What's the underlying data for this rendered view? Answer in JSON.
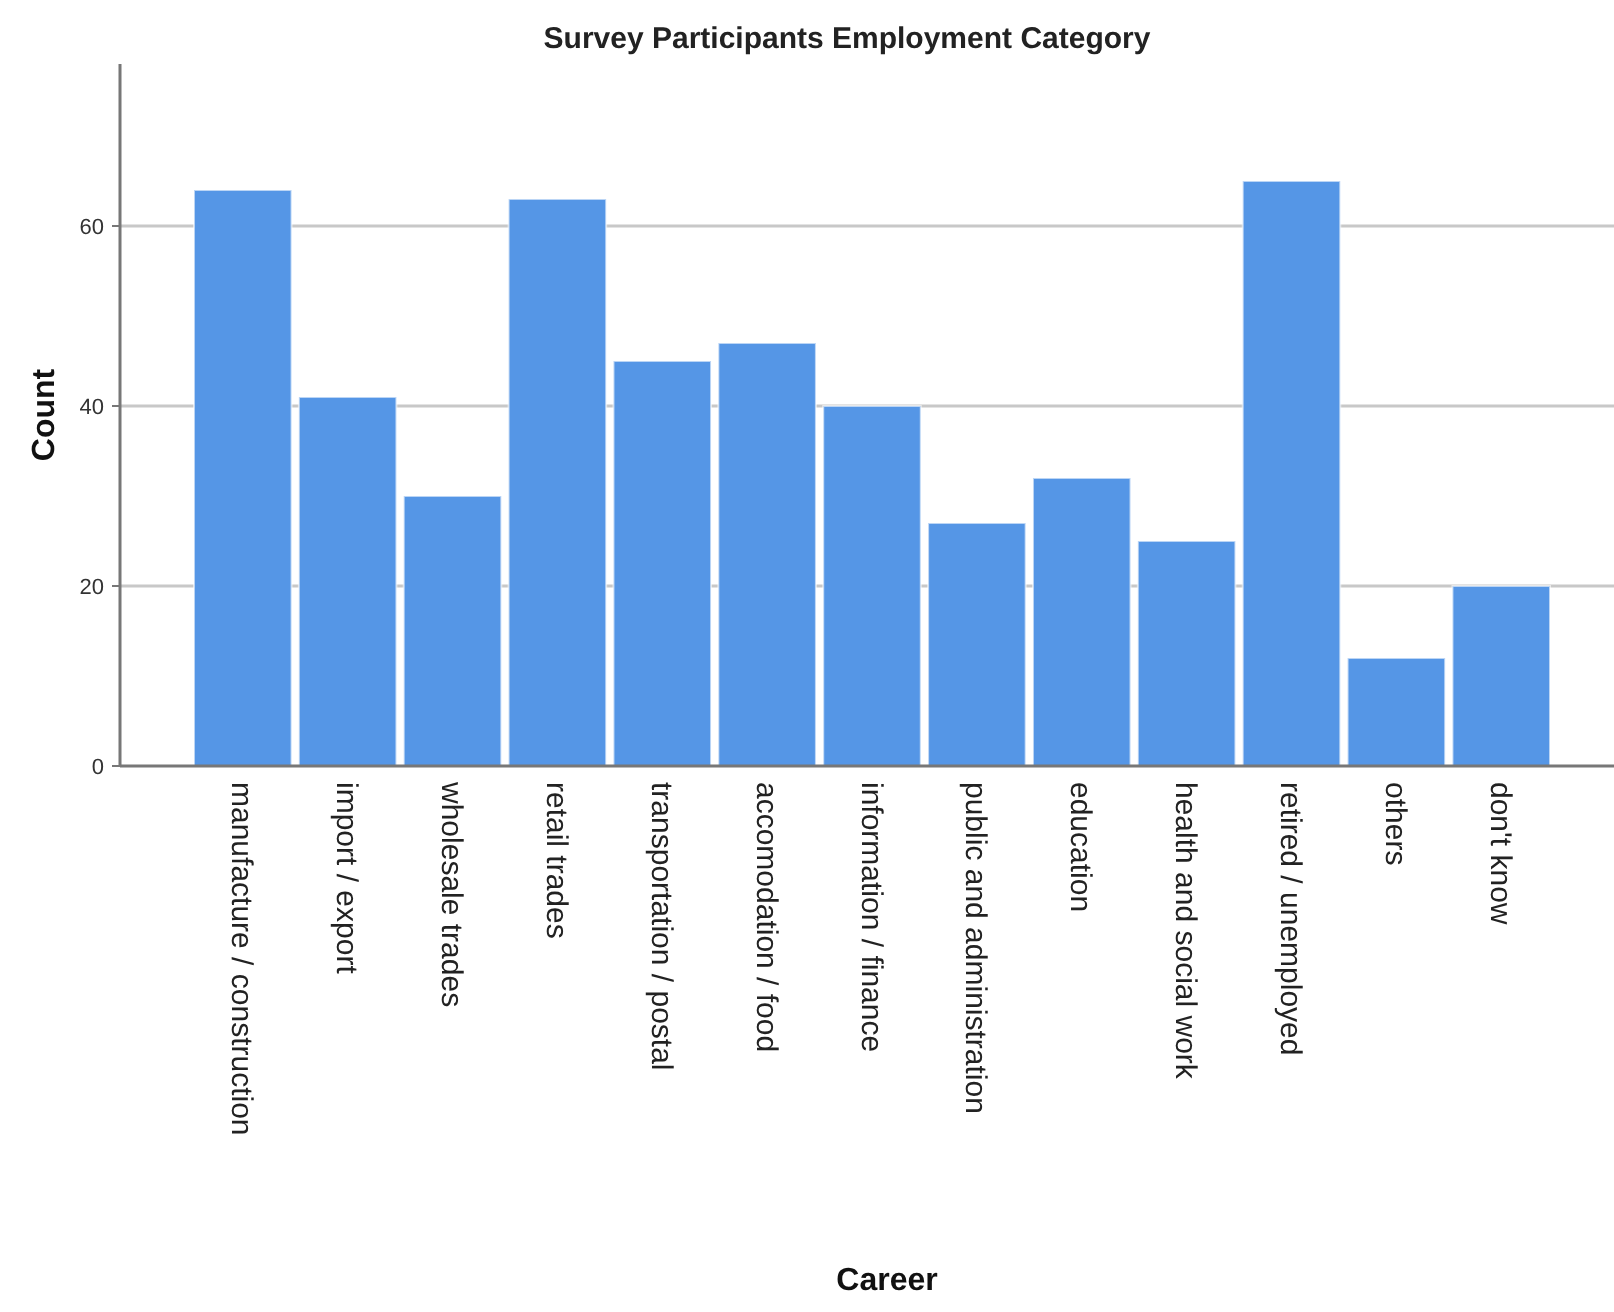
{
  "chart_data": {
    "type": "bar",
    "title": "Survey Participants Employment Category",
    "xlabel": "Career",
    "ylabel": "Count",
    "categories": [
      "manufacture / construction",
      "import / export",
      "wholesale trades",
      "retail trades",
      "transportation / postal",
      "accomodation / food",
      "information / finance",
      "public and administration",
      "education",
      "health and social work",
      "retired / unemployed",
      "others",
      "don't know"
    ],
    "values": [
      64,
      41,
      30,
      63,
      45,
      47,
      40,
      27,
      32,
      25,
      65,
      12,
      20
    ],
    "color": "#5596e6",
    "ylim": [
      0,
      78
    ],
    "yticks": [
      0,
      20,
      40,
      60
    ],
    "grid": "y"
  }
}
